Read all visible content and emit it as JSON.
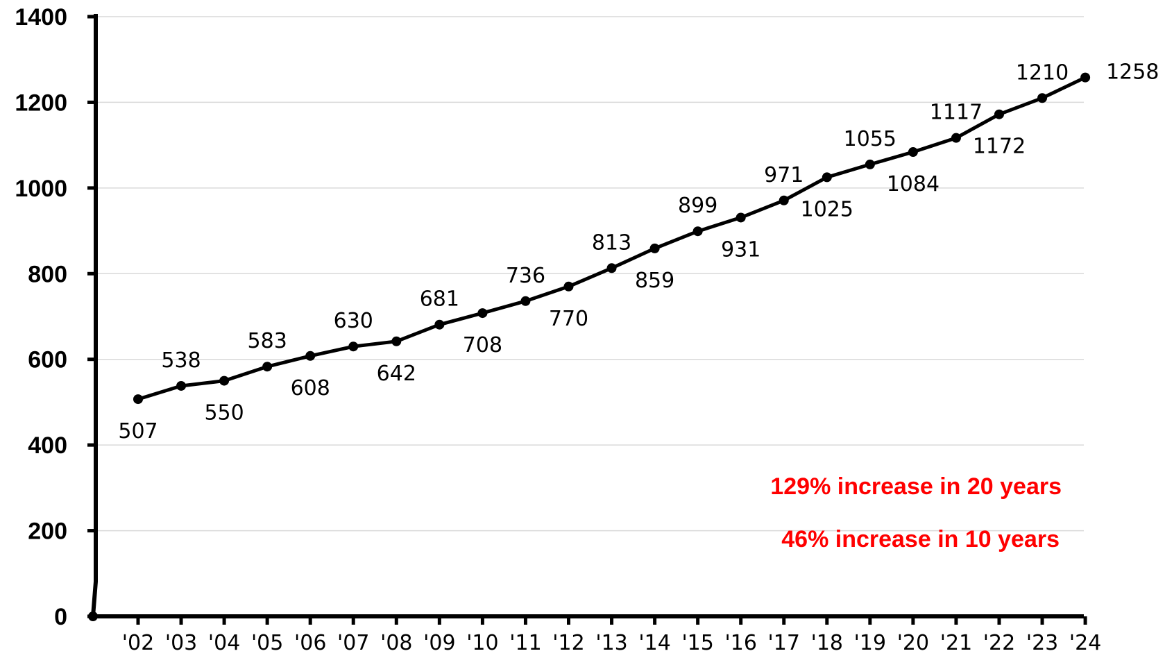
{
  "chart_data": {
    "type": "line",
    "title": "",
    "xlabel": "",
    "ylabel": "",
    "categories": [
      "'02",
      "'03",
      "'04",
      "'05",
      "'06",
      "'07",
      "'08",
      "'09",
      "'10",
      "'11",
      "'12",
      "'13",
      "'14",
      "'15",
      "'16",
      "'17",
      "'18",
      "'19",
      "'20",
      "'21",
      "'22",
      "'23",
      "'24"
    ],
    "values": [
      507,
      538,
      550,
      583,
      608,
      630,
      642,
      681,
      708,
      736,
      770,
      813,
      859,
      899,
      931,
      971,
      1025,
      1055,
      1084,
      1117,
      1172,
      1210,
      1258
    ],
    "ylim": [
      0,
      1400
    ],
    "yticks": [
      "0",
      "200",
      "400",
      "600",
      "800",
      "1000",
      "1200",
      "1400"
    ],
    "grid": "horizontal",
    "line_color": "#000000",
    "annotations": [
      {
        "text": "129% increase in 20 years",
        "color": "#ff0000"
      },
      {
        "text": "46% increase in 10 years",
        "color": "#ff0000"
      }
    ]
  }
}
